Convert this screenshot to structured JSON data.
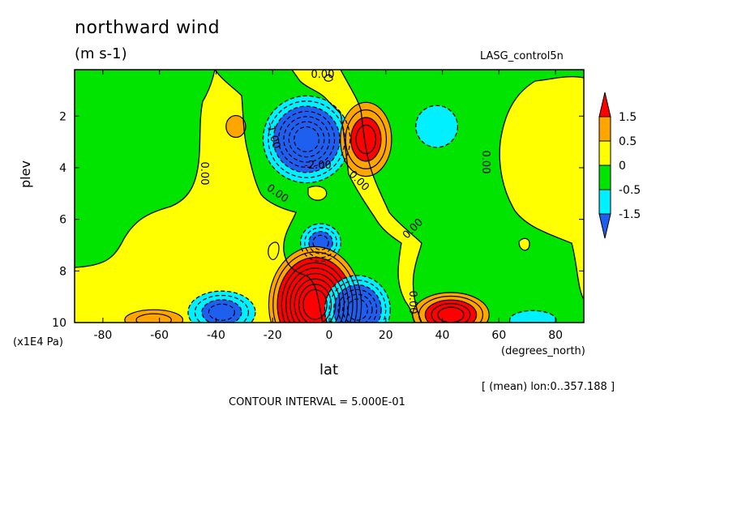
{
  "header": {
    "title": "northward wind",
    "units": "(m s-1)",
    "dataset": "LASG_control5n"
  },
  "footer": {
    "mean_note": "[ (mean) lon:0..357.188 ]",
    "contour_interval": "CONTOUR INTERVAL = 5.000E-01"
  },
  "colors": {
    "below_-1.5": "#1f5ff0",
    "-1.5_to_-0.5": "#00f0ff",
    "-0.5_to_0": "#00e400",
    "0_to_0.5": "#ffff00",
    "0.5_to_1.5": "#ffa500",
    "above_1.5": "#ff0000"
  },
  "chart_data": {
    "type": "heatmap",
    "variable": "northward wind",
    "units": "m s-1",
    "xlabel": "lat",
    "xunits": "(degrees_north)",
    "ylabel": "plev",
    "yunits": "(x1E4 Pa)",
    "xlim": [
      -90,
      90
    ],
    "ylim": [
      10,
      0.2
    ],
    "x_ticks": [
      "-80",
      "-60",
      "-40",
      "-20",
      "0",
      "20",
      "40",
      "60",
      "80"
    ],
    "y_ticks": [
      "2",
      "4",
      "6",
      "8",
      "10"
    ],
    "contour_interval": 0.5,
    "colorbar": {
      "levels": [
        "1.5",
        "0.5",
        "0",
        "-0.5",
        "-1.5"
      ],
      "bins": [
        {
          "range": "> 1.5",
          "color": "#ff0000"
        },
        {
          "range": "0.5 to 1.5",
          "color": "#ffa500"
        },
        {
          "range": "0 to 0.5",
          "color": "#ffff00"
        },
        {
          "range": "-0.5 to 0",
          "color": "#00e400"
        },
        {
          "range": "-1.5 to -0.5",
          "color": "#00f0ff"
        },
        {
          "range": "< -1.5",
          "color": "#1f5ff0"
        }
      ]
    },
    "contour_labels": [
      "0.00",
      "0.00",
      "0.00",
      "0.00",
      "0.00",
      "-1.00",
      "-2.00",
      "0.00",
      "0.00"
    ],
    "features": [
      {
        "lat": -8,
        "plev": 2.9,
        "value": -3.5
      },
      {
        "lat": 13,
        "plev": 2.9,
        "value": 2.0
      },
      {
        "lat": 38,
        "plev": 2.4,
        "value": -1.0
      },
      {
        "lat": -33,
        "plev": 2.4,
        "value": 0.8
      },
      {
        "lat": -3,
        "plev": 6.9,
        "value": -2.0
      },
      {
        "lat": -5,
        "plev": 9.3,
        "value": 4.5
      },
      {
        "lat": 10,
        "plev": 9.5,
        "value": -3.0
      },
      {
        "lat": -38,
        "plev": 9.6,
        "value": -2.0
      },
      {
        "lat": 43,
        "plev": 9.7,
        "value": 2.5
      },
      {
        "lat": -62,
        "plev": 9.9,
        "value": 1.0
      },
      {
        "lat": 72,
        "plev": 9.9,
        "value": -1.0
      }
    ]
  }
}
